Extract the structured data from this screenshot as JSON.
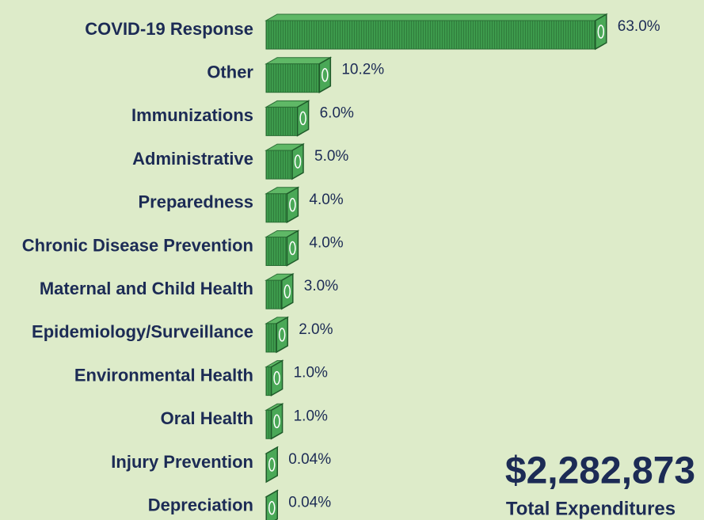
{
  "chart_data": {
    "type": "bar",
    "categories": [
      "COVID-19 Response",
      "Other",
      "Immunizations",
      "Administrative",
      "Preparedness",
      "Chronic Disease Prevention",
      "Maternal and Child Health",
      "Epidemiology/Surveillance",
      "Environmental Health",
      "Oral Health",
      "Injury Prevention",
      "Depreciation"
    ],
    "values": [
      63.0,
      10.2,
      6.0,
      5.0,
      4.0,
      4.0,
      3.0,
      2.0,
      1.0,
      1.0,
      0.04,
      0.04
    ],
    "value_labels": [
      "63.0%",
      "10.2%",
      "6.0%",
      "5.0%",
      "4.0%",
      "4.0%",
      "3.0%",
      "2.0%",
      "1.0%",
      "1.0%",
      "0.04%",
      "0.04%"
    ],
    "color": "#3d9a4c",
    "annotations": [
      "$2,282,873",
      "Total Expenditures"
    ]
  }
}
